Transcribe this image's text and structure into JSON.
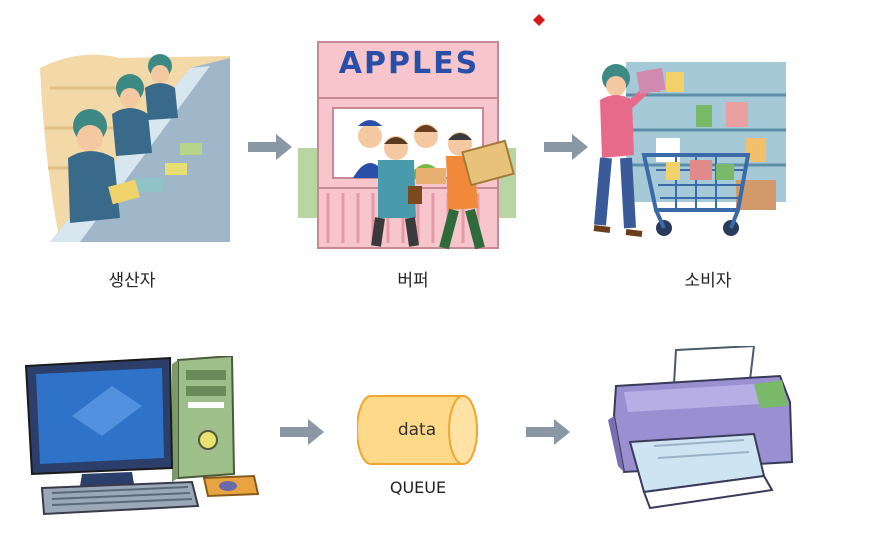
{
  "top_row": {
    "producer_caption": "생산자",
    "buffer_caption": "버퍼",
    "consumer_caption": "소비자",
    "store_sign": "APPLES"
  },
  "bottom_row": {
    "queue_text": "data",
    "queue_caption": "QUEUE"
  },
  "colors": {
    "arrow": "#8a97a5",
    "queue_fill": "#ffd98a",
    "queue_stroke": "#f0a630",
    "store_pink": "#f6c6cc",
    "sign_blue": "#2a4fa8",
    "red_dot": "#d61a1a"
  },
  "icons": [
    "red-dot-marker",
    "factory-workers-illustration",
    "apple-stand-illustration",
    "shopper-cart-illustration",
    "desktop-computer-illustration",
    "printer-illustration",
    "right-arrow-icon"
  ]
}
